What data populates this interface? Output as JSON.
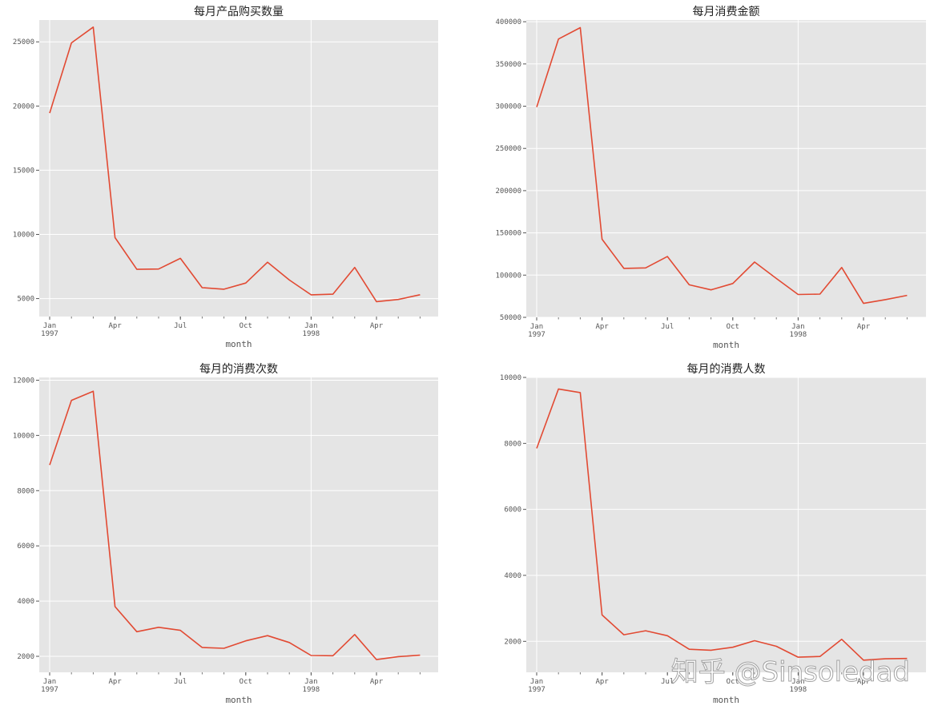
{
  "watermark": "知乎 @Sinsoledad",
  "chart_data": [
    {
      "type": "line",
      "title": "每月产品购买数量",
      "xlabel": "month",
      "ylabel": "",
      "x": [
        "1997-01",
        "1997-02",
        "1997-03",
        "1997-04",
        "1997-05",
        "1997-06",
        "1997-07",
        "1997-08",
        "1997-09",
        "1997-10",
        "1997-11",
        "1997-12",
        "1998-01",
        "1998-02",
        "1998-03",
        "1998-04",
        "1998-05",
        "1998-06"
      ],
      "values": [
        19450,
        24920,
        26150,
        9750,
        7280,
        7300,
        8130,
        5850,
        5730,
        6210,
        7830,
        6450,
        5290,
        5340,
        7430,
        4760,
        4930,
        5300
      ],
      "ylim": [
        3600,
        26700
      ],
      "yticks": [
        5000,
        10000,
        15000,
        20000,
        25000
      ],
      "xtick_labels": [
        {
          "x": "1997-01",
          "label": "Jan",
          "sub": "1997"
        },
        {
          "x": "1997-04",
          "label": "Apr",
          "sub": ""
        },
        {
          "x": "1997-07",
          "label": "Jul",
          "sub": ""
        },
        {
          "x": "1997-10",
          "label": "Oct",
          "sub": ""
        },
        {
          "x": "1998-01",
          "label": "Jan",
          "sub": "1998"
        },
        {
          "x": "1998-04",
          "label": "Apr",
          "sub": ""
        }
      ],
      "line_color": "#e24a33",
      "background": "#e5e5e5",
      "grid": true
    },
    {
      "type": "line",
      "title": "每月消费金额",
      "xlabel": "month",
      "ylabel": "",
      "x": [
        "1997-01",
        "1997-02",
        "1997-03",
        "1997-04",
        "1997-05",
        "1997-06",
        "1997-07",
        "1997-08",
        "1997-09",
        "1997-10",
        "1997-11",
        "1997-12",
        "1998-01",
        "1998-02",
        "1998-03",
        "1998-04",
        "1998-05",
        "1998-06"
      ],
      "values": [
        299000,
        379500,
        393000,
        142500,
        108000,
        108500,
        122000,
        88500,
        82500,
        90000,
        115500,
        96000,
        77000,
        77500,
        109000,
        66500,
        71000,
        76000
      ],
      "ylim": [
        50000,
        402000
      ],
      "yticks": [
        50000,
        100000,
        150000,
        200000,
        250000,
        300000,
        350000,
        400000
      ],
      "xtick_labels": [
        {
          "x": "1997-01",
          "label": "Jan",
          "sub": "1997"
        },
        {
          "x": "1997-04",
          "label": "Apr",
          "sub": ""
        },
        {
          "x": "1997-07",
          "label": "Jul",
          "sub": ""
        },
        {
          "x": "1997-10",
          "label": "Oct",
          "sub": ""
        },
        {
          "x": "1998-01",
          "label": "Jan",
          "sub": "1998"
        },
        {
          "x": "1998-04",
          "label": "Apr",
          "sub": ""
        }
      ],
      "line_color": "#e24a33",
      "background": "#e5e5e5",
      "grid": true
    },
    {
      "type": "line",
      "title": "每月的消费次数",
      "xlabel": "month",
      "ylabel": "",
      "x": [
        "1997-01",
        "1997-02",
        "1997-03",
        "1997-04",
        "1997-05",
        "1997-06",
        "1997-07",
        "1997-08",
        "1997-09",
        "1997-10",
        "1997-11",
        "1997-12",
        "1998-01",
        "1998-02",
        "1998-03",
        "1998-04",
        "1998-05",
        "1998-06"
      ],
      "values": [
        8930,
        11270,
        11600,
        3800,
        2890,
        3050,
        2940,
        2320,
        2290,
        2560,
        2750,
        2500,
        2030,
        2020,
        2790,
        1880,
        1990,
        2040
      ],
      "ylim": [
        1420,
        12100
      ],
      "yticks": [
        2000,
        4000,
        6000,
        8000,
        10000,
        12000
      ],
      "xtick_labels": [
        {
          "x": "1997-01",
          "label": "Jan",
          "sub": "1997"
        },
        {
          "x": "1997-04",
          "label": "Apr",
          "sub": ""
        },
        {
          "x": "1997-07",
          "label": "Jul",
          "sub": ""
        },
        {
          "x": "1997-10",
          "label": "Oct",
          "sub": ""
        },
        {
          "x": "1998-01",
          "label": "Jan",
          "sub": "1998"
        },
        {
          "x": "1998-04",
          "label": "Apr",
          "sub": ""
        }
      ],
      "line_color": "#e24a33",
      "background": "#e5e5e5",
      "grid": true
    },
    {
      "type": "line",
      "title": "每月的消费人数",
      "xlabel": "month",
      "ylabel": "",
      "x": [
        "1997-01",
        "1997-02",
        "1997-03",
        "1997-04",
        "1997-05",
        "1997-06",
        "1997-07",
        "1997-08",
        "1997-09",
        "1997-10",
        "1997-11",
        "1997-12",
        "1998-01",
        "1998-02",
        "1998-03",
        "1998-04",
        "1998-05",
        "1998-06"
      ],
      "values": [
        7850,
        9650,
        9540,
        2800,
        2200,
        2320,
        2170,
        1760,
        1730,
        1820,
        2020,
        1850,
        1520,
        1540,
        2060,
        1430,
        1470,
        1480
      ],
      "ylim": [
        1060,
        10000
      ],
      "yticks": [
        2000,
        4000,
        6000,
        8000,
        10000
      ],
      "xtick_labels": [
        {
          "x": "1997-01",
          "label": "Jan",
          "sub": "1997"
        },
        {
          "x": "1997-04",
          "label": "Apr",
          "sub": ""
        },
        {
          "x": "1997-07",
          "label": "Jul",
          "sub": ""
        },
        {
          "x": "1997-10",
          "label": "Oct",
          "sub": ""
        },
        {
          "x": "1998-01",
          "label": "Jan",
          "sub": "1998"
        },
        {
          "x": "1998-04",
          "label": "Apr",
          "sub": ""
        }
      ],
      "line_color": "#e24a33",
      "background": "#e5e5e5",
      "grid": true
    }
  ]
}
